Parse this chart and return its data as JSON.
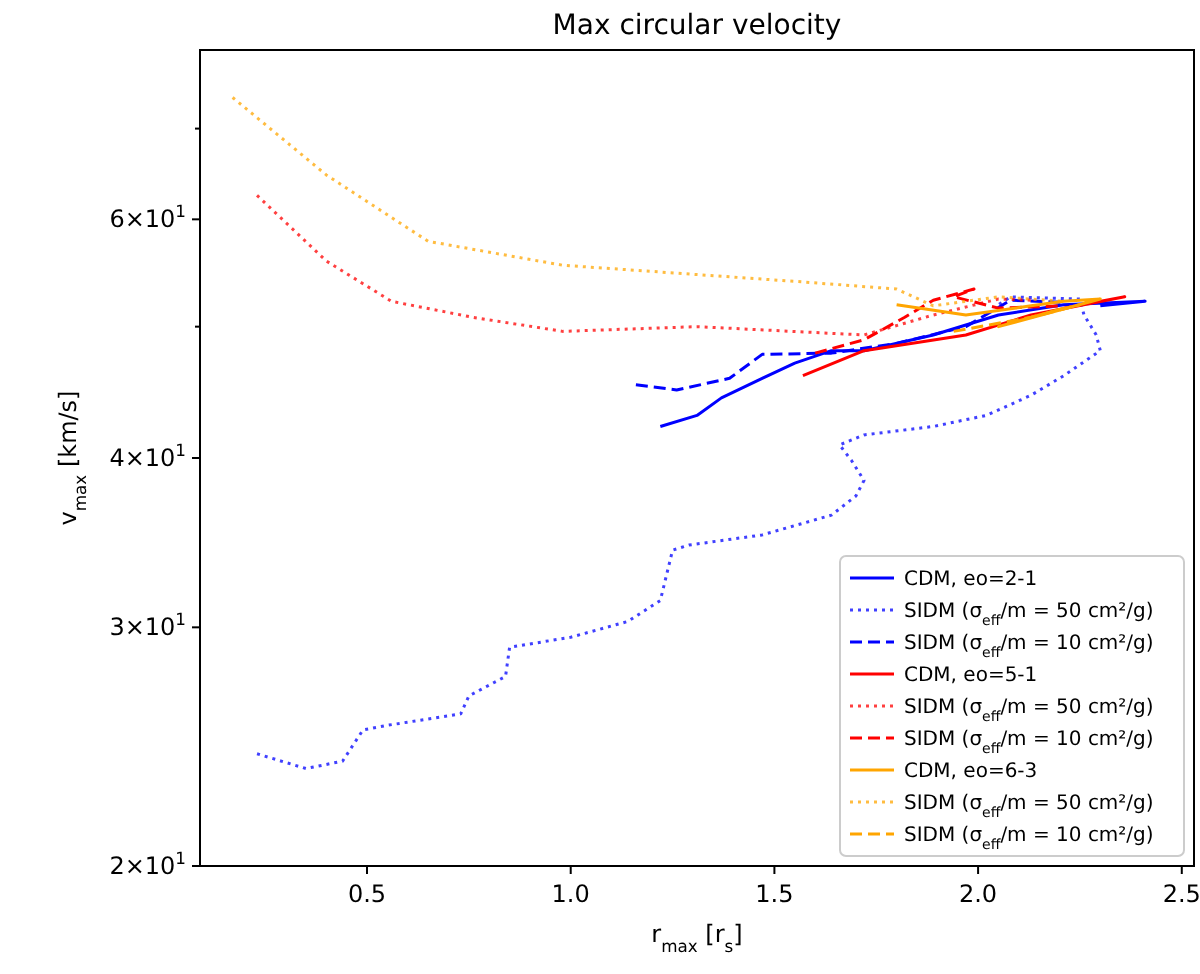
{
  "chart_data": {
    "type": "line",
    "title": "Max circular velocity",
    "xlabel": "r$_{max}$ [r$_{s}$]",
    "ylabel": "v$_{max}$ [km/s]",
    "log": "y",
    "xlim": [
      0.09,
      2.53
    ],
    "ylim": [
      20,
      80
    ],
    "xticks": [
      0.5,
      {
        "value": 1,
        "label": "1.0"
      },
      1.5,
      {
        "value": 2,
        "label": "2.0"
      },
      2.5
    ],
    "yticks": [
      {
        "value": 20,
        "label": "2×10$^{1}$"
      },
      {
        "value": 30,
        "label": "3×10$^{1}$"
      },
      {
        "value": 40,
        "label": "4×10$^{1}$"
      },
      {
        "value": 50,
        "label": null
      },
      {
        "value": 60,
        "label": "6×10$^{1}$"
      },
      {
        "value": 70,
        "label": null
      }
    ],
    "grid": false,
    "legend": "bottom right",
    "series": [
      {
        "name": "CDM, eo=2-1",
        "color": "#0000ff",
        "line_style": "solid",
        "x": [
          1.22,
          1.31,
          1.37,
          1.47,
          1.55,
          1.64,
          1.72,
          1.89,
          2.05,
          2.21,
          2.41,
          2.3
        ],
        "values": [
          42.2,
          43.0,
          44.3,
          45.8,
          47.0,
          48.0,
          48.0,
          49.3,
          51.0,
          51.9,
          52.2,
          51.8
        ]
      },
      {
        "name": "SIDM (σ$_{eff}$/m = 50 cm²/g)",
        "color": "#0000ff",
        "line_style": "dotted",
        "x": [
          0.23,
          0.35,
          0.44,
          0.49,
          0.55,
          0.73,
          0.75,
          0.84,
          0.85,
          1.0,
          1.14,
          1.22,
          1.25,
          1.29,
          1.47,
          1.64,
          1.7,
          1.72,
          1.69,
          1.66,
          1.72,
          1.89,
          2.02,
          2.13,
          2.21,
          2.3,
          2.29,
          2.26,
          2.25,
          2.08,
          2.05
        ],
        "values": [
          24.2,
          23.6,
          23.9,
          25.2,
          25.4,
          25.9,
          26.7,
          27.6,
          29.0,
          29.5,
          30.3,
          31.4,
          34.2,
          34.5,
          35.1,
          36.3,
          37.5,
          38.5,
          39.8,
          40.9,
          41.6,
          42.2,
          43.0,
          44.5,
          46.0,
          48.0,
          49.3,
          51.0,
          52.4,
          52.6,
          51.9
        ]
      },
      {
        "name": "SIDM (σ$_{eff}$/m = 10 cm²/g)",
        "color": "#0000ff",
        "line_style": "dashed",
        "x": [
          1.16,
          1.26,
          1.39,
          1.47,
          1.64,
          1.8,
          1.97,
          2.08,
          2.21
        ],
        "values": [
          45.3,
          44.9,
          45.8,
          47.7,
          47.8,
          48.6,
          50.0,
          52.3,
          52.1
        ]
      },
      {
        "name": "CDM, eo=5-1",
        "color": "#ff0000",
        "line_style": "solid",
        "x": [
          1.57,
          1.72,
          1.97,
          2.13,
          2.36,
          2.21
        ],
        "values": [
          46.0,
          48.0,
          49.3,
          51.0,
          52.6,
          51.6
        ]
      },
      {
        "name": "SIDM (σ$_{eff}$/m = 50 cm²/g)",
        "color": "#ff0000",
        "line_style": "dotted",
        "x": [
          0.23,
          0.4,
          0.56,
          0.76,
          0.98,
          1.31,
          1.72,
          1.89,
          2.05,
          2.13
        ],
        "values": [
          62.5,
          55.9,
          52.2,
          50.8,
          49.6,
          50.0,
          49.3,
          51.0,
          52.4,
          52.3
        ]
      },
      {
        "name": "SIDM (σ$_{eff}$/m = 10 cm²/g)",
        "color": "#ff0000",
        "line_style": "dashed",
        "x": [
          1.6,
          1.72,
          1.82,
          1.89,
          1.99,
          1.94,
          2.05,
          2.21
        ],
        "values": [
          47.8,
          48.9,
          50.8,
          52.3,
          53.3,
          52.6,
          51.6,
          51.8
        ]
      },
      {
        "name": "CDM, eo=6-3",
        "color": "#ffa500",
        "line_style": "solid",
        "x": [
          1.8,
          1.97,
          2.13,
          2.21,
          2.3,
          2.05,
          2.21
        ],
        "values": [
          51.9,
          51.0,
          51.8,
          52.2,
          52.4,
          50.0,
          51.6
        ]
      },
      {
        "name": "SIDM (σ$_{eff}$/m = 50 cm²/g)",
        "color": "#ffa500",
        "line_style": "dotted",
        "x": [
          0.17,
          0.4,
          0.65,
          0.98,
          1.55,
          1.8,
          1.89,
          2.05,
          2.21
        ],
        "values": [
          73.8,
          64.7,
          57.8,
          55.5,
          54.0,
          53.3,
          51.8,
          52.6,
          52.2
        ]
      },
      {
        "name": "SIDM (σ$_{eff}$/m = 10 cm²/g)",
        "color": "#ffa500",
        "line_style": "dashed",
        "x": [
          1.94,
          2.13,
          2.25
        ],
        "values": [
          49.6,
          50.8,
          51.9
        ]
      }
    ]
  }
}
